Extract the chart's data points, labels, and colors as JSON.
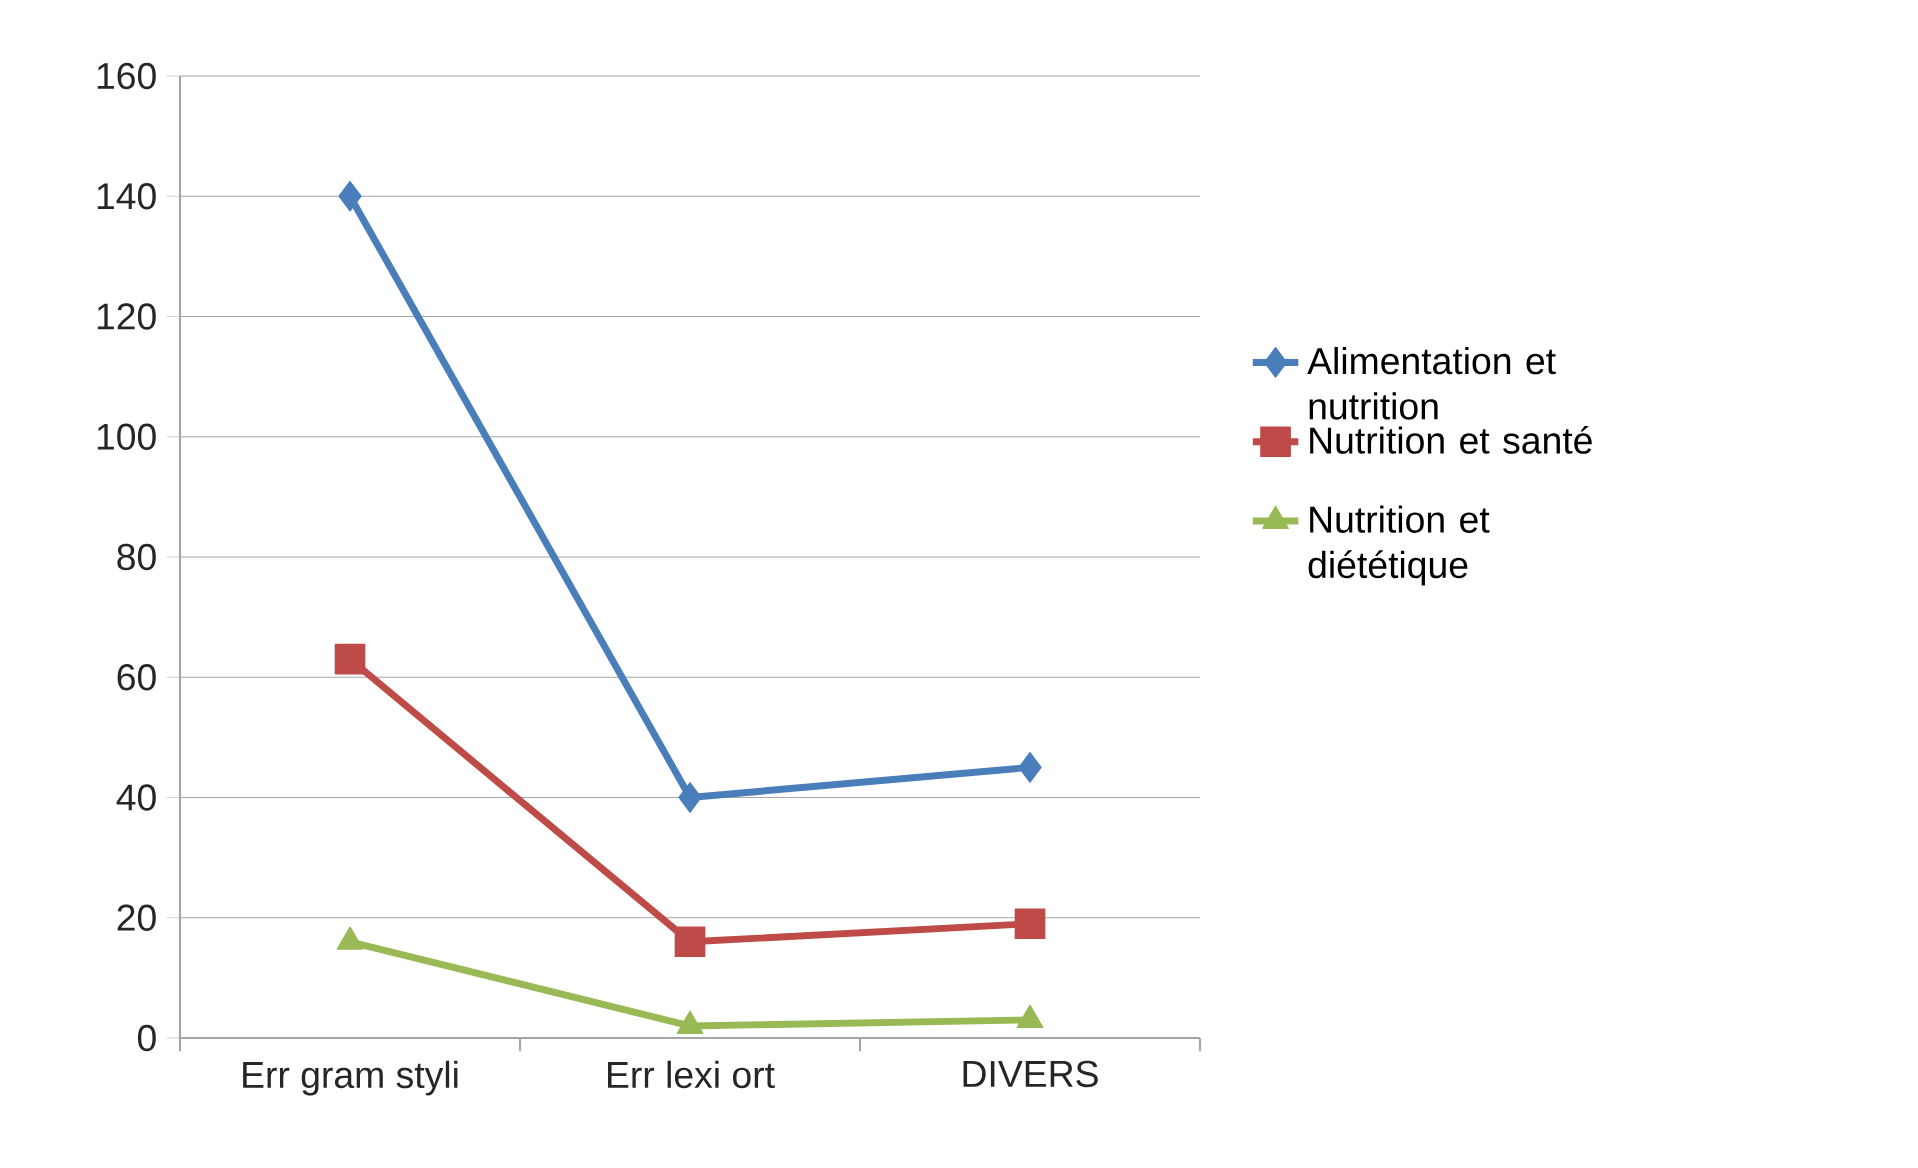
{
  "chart_data": {
    "type": "line",
    "categories": [
      "Err gram styli",
      "Err lexi ort",
      "DIVERS"
    ],
    "series": [
      {
        "name": "Alimentation et nutrition",
        "color": "#4a7ebb",
        "marker": "diamond",
        "values": [
          140,
          40,
          45
        ]
      },
      {
        "name": "Nutrition et santé",
        "color": "#be4b48",
        "marker": "square",
        "values": [
          63,
          16,
          19
        ]
      },
      {
        "name": "Nutrition et diététique",
        "color": "#98b954",
        "marker": "triangle",
        "values": [
          16,
          2,
          3
        ]
      }
    ],
    "ylim": [
      0,
      160
    ],
    "yticks": [
      0,
      20,
      40,
      60,
      80,
      100,
      120,
      140,
      160
    ],
    "grid": "y",
    "legend": "right"
  }
}
